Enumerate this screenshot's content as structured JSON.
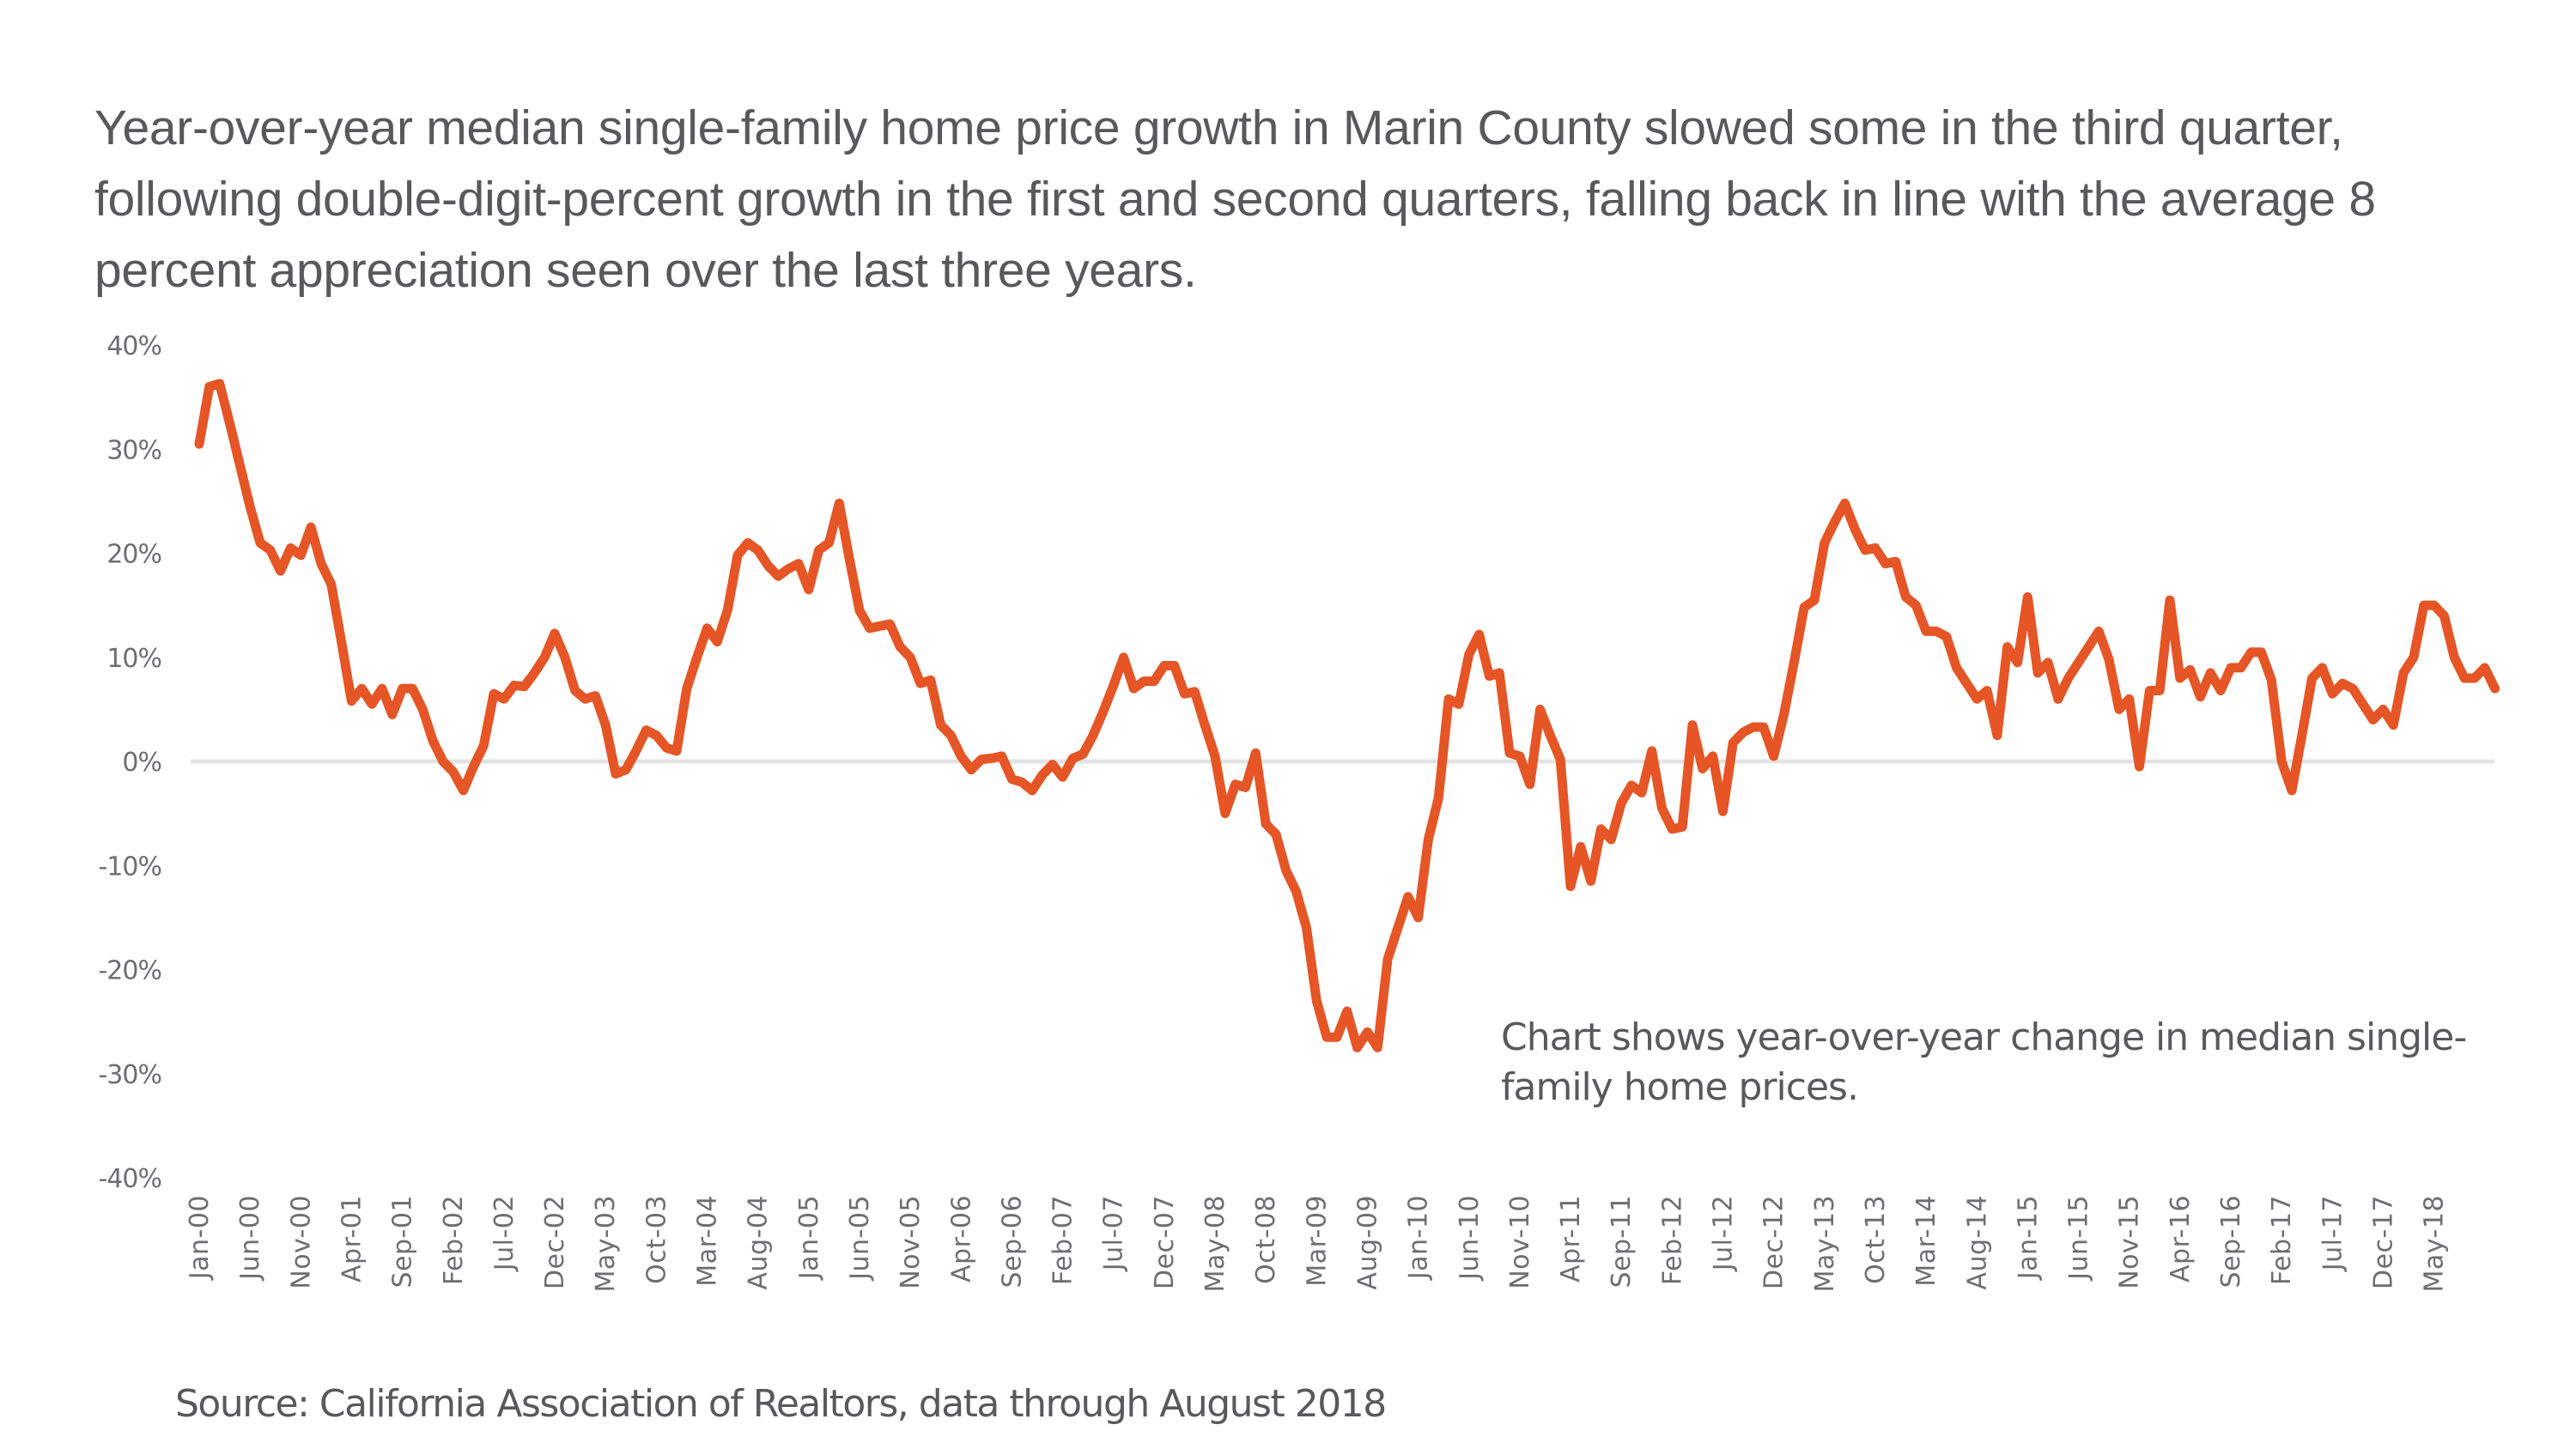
{
  "headline": "Year-over-year median single-family home price growth in Marin County slowed some in the third quarter, following double-digit-percent growth in the first and second quarters, falling back in line with the average 8 percent appreciation seen over the last three years.",
  "note": "Chart shows year-over-year change in median single-family home prices.",
  "source": "Source: California Association of Realtors, data through August 2018",
  "colors": {
    "line": "#e55526",
    "zero_line": "#e3e3e3",
    "text": "#58595b",
    "tick": "#6d6e71"
  },
  "chart_data": {
    "type": "line",
    "title": "Year-over-year median single-family home price growth in Marin County",
    "xlabel": "",
    "ylabel": "",
    "ylim": [
      -40,
      40
    ],
    "yticks": [
      40,
      30,
      20,
      10,
      0,
      -10,
      -20,
      -30,
      -40
    ],
    "ytick_labels": [
      "40%",
      "30%",
      "20%",
      "10%",
      "0%",
      "-10%",
      "-20%",
      "-30%",
      "-40%"
    ],
    "grid": "zero-line only",
    "legend": "none",
    "x_start": "Jan-00",
    "x_end": "Aug-18",
    "x_frequency": "monthly",
    "xtick_every_months": 5,
    "xtick_labels": [
      "Jan-00",
      "Jun-00",
      "Nov-00",
      "Apr-01",
      "Sep-01",
      "Feb-02",
      "Jul-02",
      "Dec-02",
      "May-03",
      "Oct-03",
      "Mar-04",
      "Aug-04",
      "Jan-05",
      "Jun-05",
      "Nov-05",
      "Apr-06",
      "Sep-06",
      "Feb-07",
      "Jul-07",
      "Dec-07",
      "May-08",
      "Oct-08",
      "Mar-09",
      "Aug-09",
      "Jan-10",
      "Jun-10",
      "Nov-10",
      "Apr-11",
      "Sep-11",
      "Feb-12",
      "Jul-12",
      "Dec-12",
      "May-13",
      "Oct-13",
      "Mar-14",
      "Aug-14",
      "Jan-15",
      "Jun-15",
      "Nov-15",
      "Apr-16",
      "Sep-16",
      "Feb-17",
      "Jul-17",
      "Dec-17",
      "May-18"
    ],
    "series": [
      {
        "name": "YoY change in median single-family home price (%)",
        "values": [
          30.5,
          36,
          36.3,
          32.5,
          28.5,
          24.5,
          21,
          20.3,
          18.3,
          20.5,
          19.8,
          22.5,
          19,
          17,
          11.5,
          5.8,
          7,
          5.5,
          7,
          4.5,
          7,
          7,
          5,
          2,
          0,
          -1,
          -2.8,
          -0.5,
          1.5,
          6.5,
          6,
          7.3,
          7.2,
          8.5,
          10,
          12.3,
          10,
          6.8,
          6,
          6.3,
          3.5,
          -1.2,
          -0.8,
          1,
          3,
          2.5,
          1.3,
          1,
          7,
          10,
          12.8,
          11.5,
          14.5,
          19.8,
          21,
          20.3,
          18.8,
          17.8,
          18.5,
          19,
          16.5,
          20.3,
          21,
          24.8,
          19.5,
          14.5,
          12.8,
          13,
          13.2,
          11,
          10,
          7.5,
          7.8,
          3.5,
          2.5,
          0.5,
          -0.8,
          0.2,
          0.3,
          0.5,
          -1.7,
          -2,
          -2.8,
          -1.3,
          -0.3,
          -1.5,
          0.3,
          0.7,
          2.5,
          4.8,
          7.3,
          10,
          7,
          7.7,
          7.7,
          9.2,
          9.2,
          6.5,
          6.7,
          3.5,
          0.5,
          -5,
          -2.2,
          -2.5,
          0.8,
          -6,
          -7,
          -10.5,
          -12.5,
          -16,
          -23,
          -26.5,
          -26.5,
          -24,
          -27.5,
          -26,
          -27.5,
          -19,
          -16,
          -13,
          -15,
          -7.5,
          -3.5,
          6,
          5.5,
          10.3,
          12.2,
          8.2,
          8.5,
          0.8,
          0.5,
          -2.2,
          5,
          2.5,
          0.2,
          -12,
          -8.2,
          -11.5,
          -6.5,
          -7.5,
          -4,
          -2.3,
          -3,
          1,
          -4.5,
          -6.5,
          -6.3,
          3.5,
          -0.7,
          0.5,
          -4.8,
          1.8,
          2.8,
          3.3,
          3.3,
          0.5,
          4.5,
          9.5,
          14.8,
          15.5,
          21,
          23,
          24.8,
          22.3,
          20.3,
          20.5,
          19,
          19.2,
          15.8,
          15,
          12.5,
          12.5,
          12,
          9,
          7.5,
          6,
          6.8,
          2.5,
          11,
          9.5,
          15.8,
          8.5,
          9.5,
          6,
          8,
          9.5,
          11,
          12.5,
          9.8,
          5,
          6,
          -0.5,
          6.8,
          6.8,
          15.5,
          8,
          8.8,
          6.2,
          8.5,
          6.8,
          9,
          9,
          10.5,
          10.5,
          7.8,
          0,
          -2.8,
          2.5,
          8,
          9,
          6.5,
          7.5,
          7,
          5.5,
          4,
          5,
          3.5,
          8.5,
          10,
          15,
          15,
          14,
          10,
          8,
          8,
          9,
          7
        ]
      }
    ]
  }
}
